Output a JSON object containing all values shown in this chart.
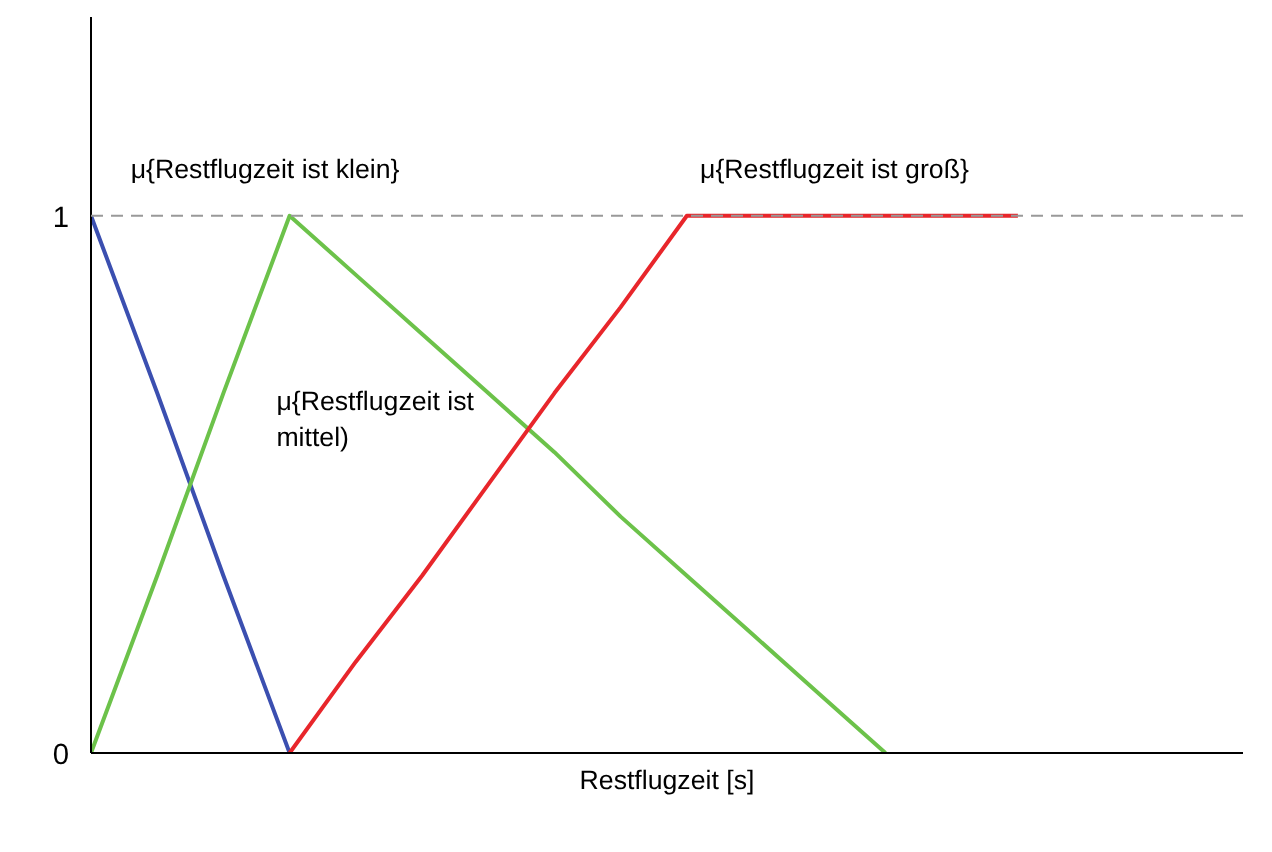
{
  "chart_data": {
    "type": "line",
    "xlabel": "Restflugzeit [s]",
    "categories": [
      null,
      null,
      null,
      null,
      null,
      null,
      null,
      null,
      null,
      null,
      null,
      null,
      null,
      null,
      null
    ],
    "series": [
      {
        "name": "μ{Restflugzeit ist klein}",
        "color": "#3b4fb0",
        "values": [
          1,
          0.67,
          0.33,
          0,
          null,
          null,
          null,
          null,
          null,
          null,
          null,
          null,
          null,
          null,
          null
        ]
      },
      {
        "name": "μ{Restflugzeit ist mittel)",
        "color": "#6cc24a",
        "values": [
          0,
          0.33,
          0.67,
          1,
          0.89,
          0.78,
          0.67,
          0.56,
          0.44,
          0.33,
          0.22,
          0.11,
          0,
          null,
          null
        ]
      },
      {
        "name": "μ{Restflugzeit ist groß}",
        "color": "#e8262b",
        "values": [
          null,
          null,
          null,
          0,
          0.17,
          0.33,
          0.5,
          0.67,
          0.83,
          1,
          1,
          1,
          1,
          1,
          1
        ]
      }
    ],
    "ylim": [
      0,
      1.37
    ],
    "yticks": [
      0,
      1
    ],
    "tick_labels": "y",
    "grid": false,
    "line_style": "solid",
    "ref_lines": [
      {
        "axis": "y",
        "value": 1,
        "label": null,
        "color": "#999999",
        "line_style": "dashed"
      }
    ]
  }
}
